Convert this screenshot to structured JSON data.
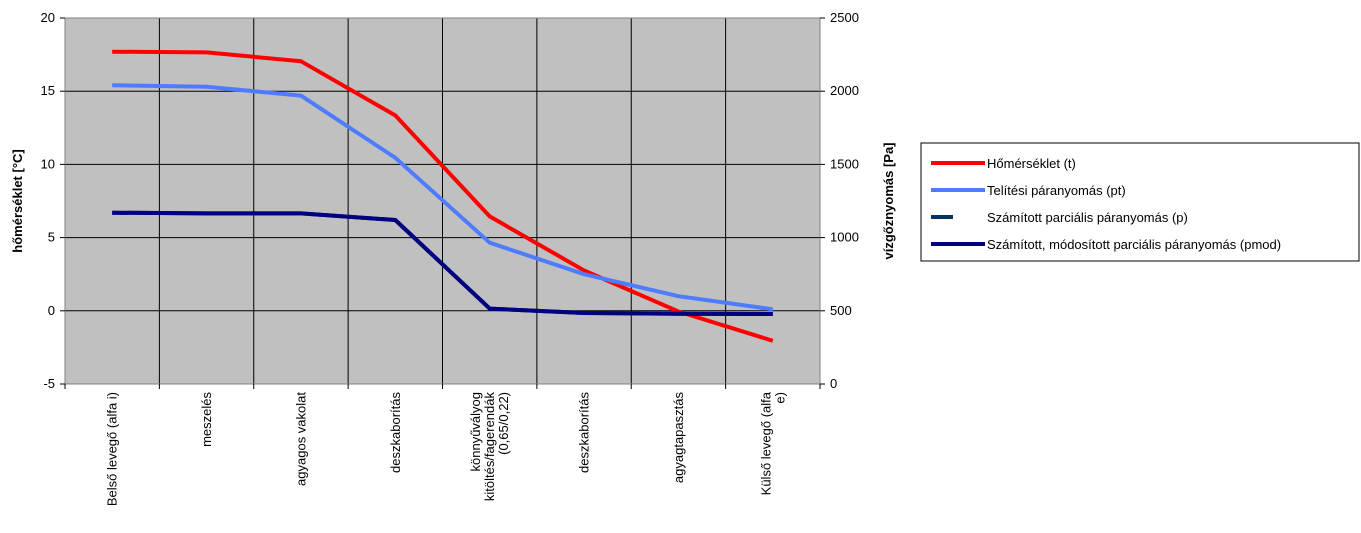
{
  "chart_data": {
    "type": "line",
    "categories": [
      "Belső levegő (alfa i)",
      "meszelés",
      "agyagos vakolat",
      "deszkaborítás",
      "könnyűvályog kitöltés/fagerendák (0,65/0,22)",
      "deszkaborítás",
      "agyagtapasztás",
      "Külső levegő (alfa e)"
    ],
    "category_lines": [
      [
        "Belső levegő (alfa i)"
      ],
      [
        "meszelés"
      ],
      [
        "agyagos vakolat"
      ],
      [
        "deszkaborítás"
      ],
      [
        "könnyűvályog",
        "kitöltés/fagerendák",
        "(0,65/0,22)"
      ],
      [
        "deszkaborítás"
      ],
      [
        "agyagtapasztás"
      ],
      [
        "Külső levegő (alfa",
        "e)"
      ]
    ],
    "ylabel": "hőmérséklet [°C]",
    "y2label": "vízgőznyomás [Pa]",
    "ylim": [
      -5,
      20
    ],
    "yticks": [
      "-5",
      "0",
      "5",
      "10",
      "15",
      "20"
    ],
    "y2lim": [
      0,
      2500
    ],
    "y2ticks": [
      "0",
      "500",
      "1000",
      "1500",
      "2000",
      "2500"
    ],
    "grid": true,
    "plot_background": "#c0c0c0",
    "legend_position": "right",
    "series": [
      {
        "name": "Hőmérséklet (t)",
        "axis": "left",
        "color": "#ff0000",
        "values": [
          17.7,
          17.65,
          17.05,
          13.35,
          6.45,
          2.75,
          -0.05,
          -2.05
        ]
      },
      {
        "name": "Telítési páranyomás (pt)",
        "axis": "right",
        "color": "#4f7cff",
        "values": [
          2040,
          2030,
          1970,
          1545,
          965,
          750,
          600,
          510
        ]
      },
      {
        "name": "Számított parciális páranyomás (p)",
        "axis": "right",
        "color": "#003366",
        "dashed": true,
        "values": [
          1170,
          1165,
          1165,
          1120,
          515,
          485,
          480,
          478
        ]
      },
      {
        "name": "Számított, módosított parciális páranyomás (pmod)",
        "axis": "right",
        "color": "#000080",
        "values": [
          1170,
          1165,
          1165,
          1120,
          515,
          485,
          480,
          478
        ]
      }
    ]
  }
}
